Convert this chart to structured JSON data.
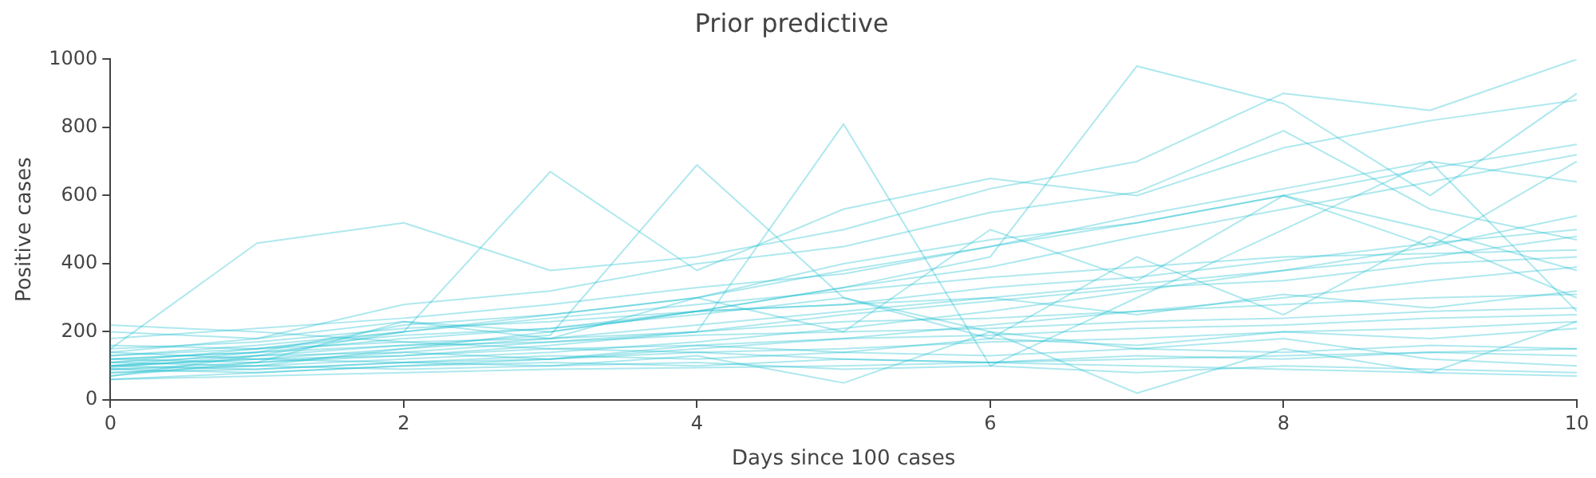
{
  "chart_data": {
    "type": "line",
    "title": "Prior predictive",
    "xlabel": "Days since 100 cases",
    "ylabel": "Positive cases",
    "x": [
      0,
      1,
      2,
      3,
      4,
      5,
      6,
      7,
      8,
      9,
      10
    ],
    "xlim": [
      0,
      10
    ],
    "xticks": [
      0,
      2,
      4,
      6,
      8,
      10
    ],
    "ylim": [
      0,
      1000
    ],
    "yticks": [
      0,
      200,
      400,
      600,
      800,
      1000
    ],
    "grid": false,
    "legend": false,
    "marker": "none",
    "line_style": "solid",
    "series": [
      {
        "color": "#17becf",
        "values": [
          100,
          120,
          150,
          180,
          220,
          260,
          300,
          340,
          380,
          420,
          480
        ]
      },
      {
        "color": "#17becf",
        "values": [
          80,
          90,
          110,
          120,
          140,
          150,
          170,
          180,
          200,
          210,
          230
        ]
      },
      {
        "color": "#17becf",
        "values": [
          120,
          140,
          220,
          250,
          300,
          400,
          470,
          520,
          600,
          680,
          750
        ]
      },
      {
        "color": "#17becf",
        "values": [
          60,
          70,
          80,
          90,
          95,
          100,
          110,
          120,
          130,
          140,
          150
        ]
      },
      {
        "color": "#17becf",
        "values": [
          150,
          460,
          520,
          380,
          420,
          500,
          620,
          700,
          900,
          850,
          1000
        ]
      },
      {
        "color": "#17becf",
        "values": [
          90,
          110,
          130,
          160,
          200,
          250,
          290,
          330,
          350,
          400,
          420
        ]
      },
      {
        "color": "#17becf",
        "values": [
          200,
          180,
          230,
          200,
          260,
          280,
          300,
          250,
          310,
          270,
          320
        ]
      },
      {
        "color": "#17becf",
        "values": [
          110,
          100,
          90,
          100,
          110,
          90,
          100,
          80,
          100,
          90,
          80
        ]
      },
      {
        "color": "#17becf",
        "values": [
          70,
          130,
          200,
          670,
          380,
          560,
          650,
          600,
          740,
          820,
          880
        ]
      },
      {
        "color": "#17becf",
        "values": [
          130,
          150,
          170,
          180,
          200,
          230,
          240,
          260,
          280,
          300,
          310
        ]
      },
      {
        "color": "#17becf",
        "values": [
          100,
          140,
          180,
          210,
          260,
          330,
          390,
          480,
          560,
          640,
          720
        ]
      },
      {
        "color": "#17becf",
        "values": [
          140,
          120,
          110,
          130,
          120,
          140,
          130,
          150,
          140,
          160,
          150
        ]
      },
      {
        "color": "#17becf",
        "values": [
          95,
          130,
          160,
          190,
          690,
          300,
          200,
          150,
          180,
          120,
          100
        ]
      },
      {
        "color": "#17becf",
        "values": [
          180,
          210,
          240,
          280,
          330,
          370,
          450,
          540,
          620,
          700,
          640
        ]
      },
      {
        "color": "#17becf",
        "values": [
          120,
          110,
          140,
          120,
          160,
          140,
          180,
          160,
          200,
          180,
          210
        ]
      },
      {
        "color": "#17becf",
        "values": [
          60,
          80,
          100,
          120,
          150,
          180,
          220,
          260,
          300,
          350,
          390
        ]
      },
      {
        "color": "#17becf",
        "values": [
          220,
          200,
          170,
          150,
          140,
          120,
          110,
          100,
          90,
          80,
          70
        ]
      },
      {
        "color": "#17becf",
        "values": [
          110,
          130,
          140,
          170,
          200,
          810,
          100,
          300,
          500,
          700,
          260
        ]
      },
      {
        "color": "#17becf",
        "values": [
          90,
          100,
          120,
          140,
          170,
          210,
          260,
          320,
          380,
          450,
          540
        ]
      },
      {
        "color": "#17becf",
        "values": [
          150,
          170,
          210,
          230,
          260,
          280,
          330,
          360,
          410,
          460,
          500
        ]
      },
      {
        "color": "#17becf",
        "values": [
          80,
          100,
          150,
          200,
          260,
          330,
          420,
          980,
          870,
          600,
          900
        ]
      },
      {
        "color": "#17becf",
        "values": [
          130,
          160,
          200,
          250,
          300,
          380,
          450,
          520,
          600,
          500,
          380
        ]
      },
      {
        "color": "#17becf",
        "values": [
          100,
          120,
          130,
          150,
          160,
          180,
          190,
          210,
          220,
          240,
          250
        ]
      },
      {
        "color": "#17becf",
        "values": [
          160,
          150,
          190,
          210,
          250,
          300,
          180,
          420,
          250,
          480,
          300
        ]
      },
      {
        "color": "#17becf",
        "values": [
          70,
          110,
          230,
          180,
          300,
          200,
          500,
          350,
          600,
          450,
          700
        ]
      },
      {
        "color": "#17becf",
        "values": [
          120,
          140,
          160,
          170,
          190,
          200,
          210,
          230,
          240,
          260,
          270
        ]
      },
      {
        "color": "#17becf",
        "values": [
          90,
          80,
          100,
          110,
          100,
          120,
          110,
          130,
          120,
          140,
          130
        ]
      },
      {
        "color": "#17becf",
        "values": [
          140,
          180,
          280,
          320,
          400,
          450,
          550,
          610,
          790,
          560,
          470
        ]
      },
      {
        "color": "#17becf",
        "values": [
          110,
          150,
          200,
          240,
          280,
          320,
          360,
          390,
          420,
          430,
          440
        ]
      },
      {
        "color": "#17becf",
        "values": [
          100,
          90,
          110,
          100,
          130,
          50,
          200,
          20,
          150,
          80,
          230
        ]
      }
    ]
  }
}
